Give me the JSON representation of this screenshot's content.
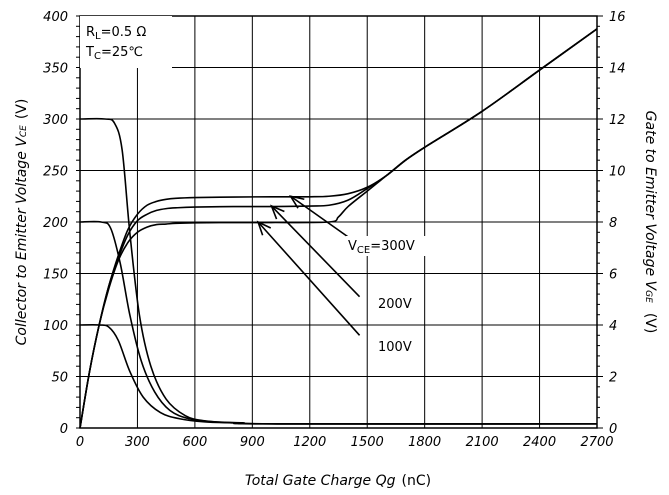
{
  "chart_data": {
    "type": "line",
    "xlabel": "Total Gate Charge Qg",
    "xunit": "(nC)",
    "ylabel_left": "Collector to Emitter Voltage V",
    "ylabel_left_sub": "CE",
    "ylabel_left_unit": "(V)",
    "ylabel_right": "Gate to Emitter Voltage V",
    "ylabel_right_sub": "GE",
    "ylabel_right_unit": "(V)",
    "xlim": [
      0,
      2700
    ],
    "ylim_left": [
      0,
      400
    ],
    "ylim_right": [
      0,
      16
    ],
    "xticks": [
      "0",
      "300",
      "600",
      "900",
      "1200",
      "1500",
      "1800",
      "2100",
      "2400",
      "2700"
    ],
    "yticks_left": [
      "0",
      "50",
      "100",
      "150",
      "200",
      "250",
      "300",
      "350",
      "400"
    ],
    "yticks_right": [
      "0",
      "2",
      "4",
      "6",
      "8",
      "10",
      "12",
      "14",
      "16"
    ],
    "grid": true,
    "conditions": {
      "rl_main": "R",
      "rl_sub": "L",
      "rl_val": "=0.5 Ω",
      "tc_main": "T",
      "tc_sub": "C",
      "tc_val": "=25℃"
    },
    "series": [
      {
        "axis": "left",
        "x": [
          0,
          130,
          180,
          220,
          260,
          310,
          370,
          450,
          550,
          650,
          800,
          1000,
          1500,
          2700
        ],
        "y": [
          300,
          300,
          296,
          270,
          190,
          110,
          60,
          28,
          12,
          7,
          5,
          4,
          4,
          4
        ]
      },
      {
        "axis": "left",
        "x": [
          0,
          110,
          160,
          210,
          260,
          320,
          390,
          470,
          570,
          700,
          850,
          1000,
          2700
        ],
        "y": [
          200,
          200,
          194,
          160,
          110,
          65,
          35,
          17,
          9,
          6,
          5,
          4,
          4
        ]
      },
      {
        "axis": "left",
        "x": [
          0,
          100,
          150,
          200,
          260,
          330,
          420,
          520,
          650,
          800,
          1000,
          2700
        ],
        "y": [
          100,
          100,
          98,
          85,
          55,
          30,
          15,
          9,
          6,
          5,
          4,
          4
        ]
      },
      {
        "axis": "right",
        "x": [
          0,
          50,
          100,
          150,
          200,
          250,
          300,
          350,
          400,
          450,
          500,
          600,
          800,
          1000,
          1300,
          1350,
          1400,
          1500,
          1600,
          1700,
          1800,
          2100,
          2400,
          2700
        ],
        "y": [
          0,
          2.2,
          4.0,
          5.4,
          6.5,
          7.2,
          7.6,
          7.8,
          7.9,
          7.92,
          7.95,
          7.97,
          7.98,
          7.98,
          8.0,
          8.2,
          8.6,
          9.2,
          9.8,
          10.4,
          10.9,
          12.3,
          13.9,
          15.5
        ]
      },
      {
        "axis": "right",
        "x": [
          0,
          50,
          100,
          150,
          200,
          250,
          300,
          350,
          400,
          450,
          500,
          600,
          800,
          1000,
          1200,
          1300,
          1400,
          1500,
          1600,
          1700,
          1800,
          2100,
          2400,
          2700
        ],
        "y": [
          0,
          2.2,
          4.0,
          5.5,
          6.6,
          7.5,
          8.05,
          8.3,
          8.45,
          8.52,
          8.55,
          8.58,
          8.6,
          8.6,
          8.62,
          8.65,
          8.85,
          9.3,
          9.8,
          10.4,
          10.9,
          12.3,
          13.9,
          15.5
        ]
      },
      {
        "axis": "right",
        "x": [
          0,
          50,
          100,
          150,
          200,
          250,
          300,
          350,
          400,
          450,
          500,
          600,
          800,
          1000,
          1200,
          1300,
          1400,
          1500,
          1600,
          1700,
          1800,
          2100,
          2400,
          2700
        ],
        "y": [
          0,
          2.2,
          4.0,
          5.5,
          6.7,
          7.7,
          8.3,
          8.65,
          8.8,
          8.88,
          8.92,
          8.95,
          8.97,
          8.98,
          8.98,
          9.0,
          9.1,
          9.35,
          9.8,
          10.4,
          10.9,
          12.3,
          13.9,
          15.5
        ]
      }
    ],
    "annotations": [
      {
        "text_main": "V",
        "text_sub": "CE",
        "text_val": "=300V",
        "arrow_from": [
          1480,
          7.0
        ],
        "arrow_to": [
          1100,
          9.0
        ]
      },
      {
        "text": "200V",
        "arrow_from": [
          1460,
          5.1
        ],
        "arrow_to": [
          1000,
          8.62
        ]
      },
      {
        "text": "100V",
        "arrow_from": [
          1460,
          3.6
        ],
        "arrow_to": [
          930,
          8.0
        ]
      }
    ]
  }
}
